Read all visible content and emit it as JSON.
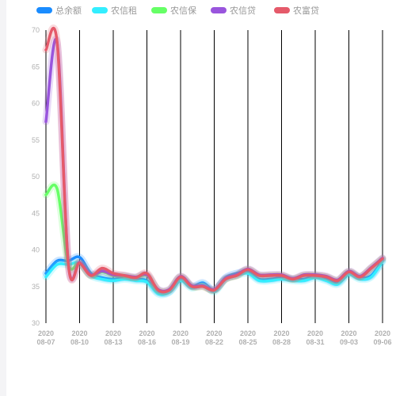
{
  "chart_data": {
    "type": "line",
    "title": "",
    "xlabel": "",
    "ylabel": "",
    "ylim": [
      30,
      70
    ],
    "yticks": [
      30,
      35,
      40,
      45,
      50,
      55,
      60,
      65,
      70
    ],
    "grid": "vertical",
    "legend_position": "top",
    "x_ticks": [
      {
        "year": "2020",
        "date": "08-07"
      },
      {
        "year": "2020",
        "date": "08-10"
      },
      {
        "year": "2020",
        "date": "08-13"
      },
      {
        "year": "2020",
        "date": "08-16"
      },
      {
        "year": "2020",
        "date": "08-19"
      },
      {
        "year": "2020",
        "date": "08-22"
      },
      {
        "year": "2020",
        "date": "08-25"
      },
      {
        "year": "2020",
        "date": "08-28"
      },
      {
        "year": "2020",
        "date": "08-31"
      },
      {
        "year": "2020",
        "date": "09-03"
      },
      {
        "year": "2020",
        "date": "09-06"
      }
    ],
    "x": [
      "2020-08-07",
      "2020-08-08",
      "2020-08-09",
      "2020-08-10",
      "2020-08-11",
      "2020-08-12",
      "2020-08-13",
      "2020-08-14",
      "2020-08-15",
      "2020-08-16",
      "2020-08-17",
      "2020-08-18",
      "2020-08-19",
      "2020-08-20",
      "2020-08-21",
      "2020-08-22",
      "2020-08-23",
      "2020-08-24",
      "2020-08-25",
      "2020-08-26",
      "2020-08-27",
      "2020-08-28",
      "2020-08-29",
      "2020-08-30",
      "2020-08-31",
      "2020-09-01",
      "2020-09-02",
      "2020-09-03",
      "2020-09-04",
      "2020-09-05",
      "2020-09-06"
    ],
    "series": [
      {
        "name": "总余额",
        "color": "#1a8cff",
        "values": [
          36.8,
          38.5,
          38.5,
          39.0,
          36.8,
          36.2,
          36.0,
          36.2,
          36.0,
          35.8,
          34.2,
          34.3,
          36.0,
          35.0,
          35.5,
          34.5,
          36.2,
          36.8,
          37.0,
          36.0,
          36.0,
          36.2,
          36.0,
          36.0,
          36.4,
          36.0,
          35.5,
          36.8,
          36.2,
          36.5,
          38.6
        ]
      },
      {
        "name": "农信租",
        "color": "#33eeff",
        "values": [
          36.3,
          38.0,
          38.0,
          38.2,
          36.5,
          36.0,
          35.8,
          36.0,
          35.8,
          35.6,
          34.0,
          34.2,
          35.8,
          34.8,
          35.3,
          34.3,
          36.0,
          36.5,
          36.8,
          35.8,
          35.8,
          36.0,
          35.8,
          35.8,
          36.2,
          35.8,
          35.3,
          36.6,
          36.0,
          36.3,
          38.4
        ]
      },
      {
        "name": "农信保",
        "color": "#66ff66",
        "values": [
          47.5,
          48.3,
          38.0,
          38.2,
          36.5,
          37.0,
          36.5,
          36.4,
          36.2,
          36.5,
          34.5,
          34.5,
          36.3,
          35.0,
          35.0,
          34.5,
          36.0,
          36.5,
          37.3,
          36.5,
          36.5,
          36.5,
          36.0,
          36.5,
          36.5,
          36.3,
          35.8,
          37.0,
          36.3,
          37.5,
          38.8
        ]
      },
      {
        "name": "农信贷",
        "color": "#9955dd",
        "values": [
          57.5,
          68.2,
          38.1,
          38.3,
          36.6,
          37.1,
          36.6,
          36.5,
          36.3,
          36.6,
          34.6,
          34.6,
          36.4,
          35.1,
          35.1,
          34.6,
          36.1,
          36.6,
          37.4,
          36.6,
          36.6,
          36.6,
          36.1,
          36.6,
          36.6,
          36.4,
          35.9,
          37.1,
          36.4,
          37.6,
          38.9
        ]
      },
      {
        "name": "农富贷",
        "color": "#e55a6a",
        "values": [
          67.3,
          68.3,
          38.0,
          38.2,
          36.5,
          37.5,
          36.8,
          36.5,
          36.2,
          36.8,
          34.5,
          34.5,
          36.3,
          35.0,
          35.0,
          34.5,
          36.0,
          36.5,
          37.3,
          36.5,
          36.5,
          36.5,
          36.0,
          36.5,
          36.5,
          36.3,
          35.8,
          37.0,
          36.3,
          37.5,
          38.8
        ]
      }
    ]
  }
}
